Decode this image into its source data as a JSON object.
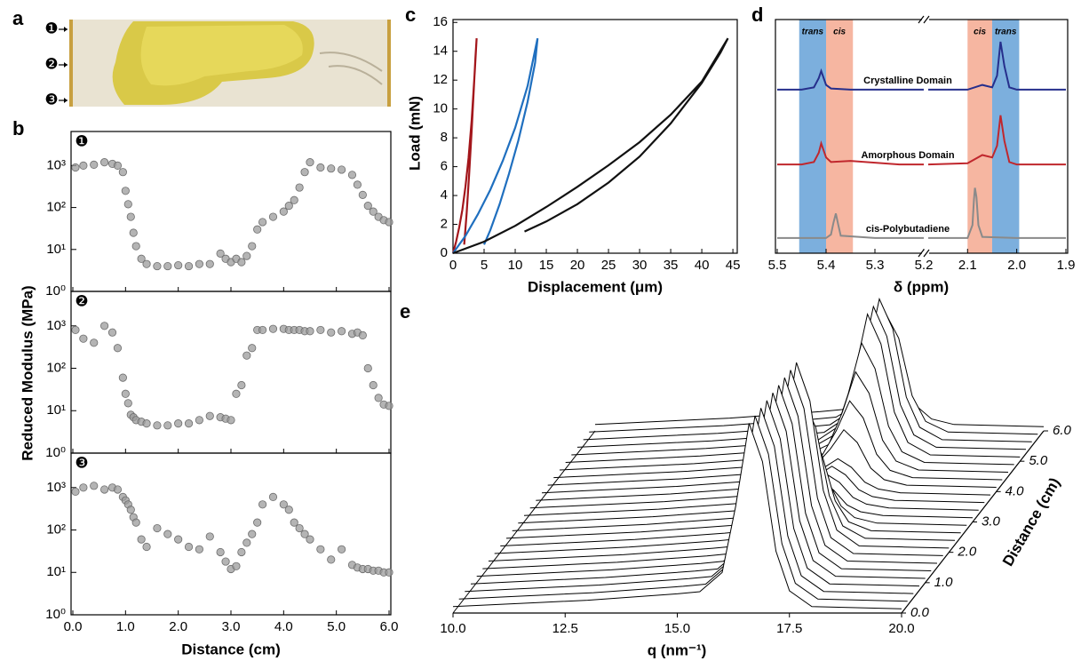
{
  "chart_data": [
    {
      "panel": "a",
      "type": "image",
      "markers": [
        "❶",
        "❷",
        "❸"
      ]
    },
    {
      "panel": "b",
      "type": "scatter",
      "log_y": true,
      "xlabel": "Distance (cm)",
      "ylabel": "Reduced Modulus (MPa)",
      "xlim": [
        0,
        6
      ],
      "xticks": [
        {
          "value": 0,
          "label": "0.0"
        },
        {
          "value": 1,
          "label": "1.0"
        },
        {
          "value": 2,
          "label": "2.0"
        },
        {
          "value": 3,
          "label": "3.0"
        },
        {
          "value": 4,
          "label": "4.0"
        },
        {
          "value": 5,
          "label": "5.0"
        },
        {
          "value": 6,
          "label": "6.0"
        }
      ],
      "ylim": [
        1,
        6500
      ],
      "yticks": [
        {
          "value": 1,
          "label": "10⁰"
        },
        {
          "value": 10,
          "label": "10¹"
        },
        {
          "value": 100,
          "label": "10²"
        },
        {
          "value": 1000,
          "label": "10³"
        }
      ],
      "x": [
        0.05,
        0.2,
        0.4,
        0.6,
        0.75,
        0.85,
        0.95,
        1.0,
        1.05,
        1.1,
        1.15,
        1.2,
        1.3,
        1.4,
        1.6,
        1.8,
        2.0,
        2.2,
        2.4,
        2.6,
        2.8,
        2.9,
        3.0,
        3.1,
        3.2,
        3.3,
        3.4,
        3.5,
        3.6,
        3.8,
        4.0,
        4.1,
        4.2,
        4.3,
        4.4,
        4.5,
        4.7,
        4.9,
        5.1,
        5.3,
        5.4,
        5.5,
        5.6,
        5.7,
        5.8,
        5.9,
        6.0
      ],
      "series": [
        {
          "name": "❶",
          "color": "#9b9b9b",
          "values": [
            900,
            1000,
            1050,
            1200,
            1100,
            1000,
            700,
            250,
            120,
            60,
            25,
            12,
            6,
            4.5,
            4,
            4,
            4.2,
            4,
            4.5,
            4.5,
            8,
            6,
            5,
            6,
            5,
            7,
            12,
            30,
            45,
            60,
            80,
            110,
            150,
            300,
            700,
            1200,
            900,
            850,
            800,
            600,
            350,
            200,
            110,
            80,
            60,
            50,
            45
          ]
        },
        {
          "name": "❷",
          "color": "#9b9b9b",
          "values": [
            800,
            500,
            400,
            1000,
            700,
            300,
            60,
            25,
            15,
            8,
            7,
            6,
            5.5,
            5,
            4.5,
            4.5,
            5,
            5,
            6,
            7.5,
            7,
            6.5,
            6,
            25,
            40,
            200,
            300,
            800,
            800,
            850,
            850,
            800,
            800,
            800,
            750,
            750,
            800,
            700,
            750,
            650,
            700,
            600,
            100,
            40,
            20,
            14,
            13
          ]
        },
        {
          "name": "❸",
          "color": "#9b9b9b",
          "values": [
            800,
            1000,
            1100,
            900,
            1000,
            900,
            600,
            500,
            400,
            300,
            200,
            150,
            60,
            40,
            110,
            80,
            60,
            40,
            35,
            70,
            30,
            18,
            12,
            14,
            30,
            50,
            80,
            150,
            400,
            600,
            400,
            300,
            150,
            110,
            80,
            60,
            35,
            20,
            35,
            15,
            13,
            12,
            12,
            11,
            11,
            10,
            10
          ]
        }
      ]
    },
    {
      "panel": "c",
      "type": "line",
      "xlabel": "Displacement (μm)",
      "ylabel": "Load (mN)",
      "xlim": [
        0,
        45.7
      ],
      "xticks": [
        0,
        5,
        10,
        15,
        20,
        25,
        30,
        35,
        40,
        45
      ],
      "ylim": [
        0,
        16.2
      ],
      "yticks": [
        0,
        2,
        4,
        6,
        8,
        10,
        12,
        14,
        16
      ],
      "series": [
        {
          "color": "#a3161b",
          "x": [
            0,
            0.5,
            1.0,
            1.5,
            2.0,
            2.5,
            3.0,
            3.5,
            3.8,
            3.6,
            3.3,
            3.0,
            2.6,
            2.2,
            1.8
          ],
          "values": [
            0,
            0.8,
            1.8,
            3.0,
            4.6,
            6.6,
            9.2,
            12.6,
            14.9,
            13.5,
            11,
            8.5,
            5.5,
            2.8,
            0.6
          ]
        },
        {
          "color": "#1f6fbf",
          "x": [
            0,
            2,
            4,
            6,
            8,
            10,
            12,
            13.6,
            13.2,
            12,
            10.5,
            9,
            7.5,
            6,
            5
          ],
          "values": [
            0,
            1.2,
            2.7,
            4.4,
            6.4,
            8.7,
            11.6,
            14.9,
            13.2,
            10.5,
            7.8,
            5.5,
            3.4,
            1.6,
            0.6
          ]
        },
        {
          "color": "#111111",
          "x": [
            0,
            5,
            10,
            15,
            20,
            25,
            30,
            35,
            40,
            44.2,
            43,
            40,
            35,
            30,
            25,
            20,
            15,
            11.5
          ],
          "values": [
            0,
            0.8,
            1.9,
            3.2,
            4.6,
            6.1,
            7.7,
            9.6,
            11.9,
            14.9,
            13.9,
            11.8,
            9.0,
            6.7,
            4.9,
            3.4,
            2.2,
            1.5
          ]
        }
      ]
    },
    {
      "panel": "d",
      "type": "spectrum",
      "xlabel": "δ (ppm)",
      "ylim": [
        0,
        10
      ],
      "segments": [
        {
          "xlim": [
            5.5,
            5.2
          ],
          "xticks": [
            5.5,
            5.4,
            5.3,
            5.2
          ]
        },
        {
          "xlim": [
            2.18,
            1.9
          ],
          "xticks": [
            2.1,
            {
              "value": 2,
              "label": "2.0"
            },
            1.9
          ]
        }
      ],
      "bands": [
        {
          "from": 5.455,
          "to": 5.4,
          "label": "trans",
          "color": "#5b9bd5"
        },
        {
          "from": 5.4,
          "to": 5.345,
          "label": "cis",
          "color": "#f4a48a"
        },
        {
          "from": 2.1,
          "to": 2.05,
          "label": "cis",
          "color": "#f4a48a"
        },
        {
          "from": 2.05,
          "to": 1.995,
          "label": "trans",
          "color": "#5b9bd5"
        }
      ],
      "series": [
        {
          "name": "Crystalline Domain",
          "color": "#262f8c",
          "x": [
            5.5,
            5.45,
            5.425,
            5.415,
            5.41,
            5.4,
            5.39,
            5.35,
            5.25,
            5.2,
            null,
            2.18,
            2.1,
            2.07,
            2.05,
            2.04,
            2.033,
            2.025,
            2.015,
            2.0,
            1.95,
            1.9
          ],
          "values": [
            7.0,
            7.0,
            7.1,
            7.5,
            7.8,
            7.2,
            7.05,
            7.0,
            7.0,
            7.0,
            null,
            7.0,
            7.0,
            7.2,
            7.1,
            7.6,
            9.05,
            8.0,
            7.1,
            7.0,
            7.0,
            7.0
          ]
        },
        {
          "name": "Amorphous Domain",
          "color": "#c0272d",
          "x": [
            5.5,
            5.45,
            5.425,
            5.415,
            5.41,
            5.4,
            5.39,
            5.35,
            5.25,
            5.2,
            null,
            2.18,
            2.1,
            2.07,
            2.05,
            2.04,
            2.033,
            2.025,
            2.015,
            2.0,
            1.95,
            1.9
          ],
          "values": [
            3.8,
            3.8,
            3.9,
            4.3,
            4.7,
            4.1,
            3.9,
            3.95,
            3.8,
            3.8,
            null,
            3.8,
            3.85,
            4.2,
            4.1,
            4.6,
            5.9,
            4.8,
            3.9,
            3.8,
            3.8,
            3.8
          ]
        },
        {
          "name": "cis-Polybutadiene",
          "color": "#8a8a8a",
          "x": [
            5.5,
            5.4,
            5.39,
            5.385,
            5.38,
            5.375,
            5.37,
            5.3,
            5.2,
            null,
            2.18,
            2.1,
            2.09,
            2.087,
            2.085,
            2.082,
            2.078,
            2.07,
            2.0,
            1.9
          ],
          "values": [
            0.65,
            0.65,
            0.8,
            1.3,
            1.7,
            1.2,
            0.75,
            0.65,
            0.65,
            null,
            0.65,
            0.65,
            1.2,
            2.3,
            2.8,
            2.4,
            1.2,
            0.7,
            0.65,
            0.65
          ]
        }
      ]
    },
    {
      "panel": "e",
      "type": "waterfall",
      "xlabel": "q (nm⁻¹)",
      "ylabel": "Distance (cm)",
      "xlim": [
        10,
        20
      ],
      "xticks": [
        {
          "value": 10,
          "label": "10.0"
        },
        12.5,
        {
          "value": 15,
          "label": "15.0"
        },
        17.5,
        {
          "value": 20,
          "label": "20.0"
        }
      ],
      "ylim": [
        0,
        6
      ],
      "yticks": [
        {
          "value": 0,
          "label": "0.0"
        },
        {
          "value": 1,
          "label": "1.0"
        },
        {
          "value": 2,
          "label": "2.0"
        },
        {
          "value": 3,
          "label": "3.0"
        },
        {
          "value": 4,
          "label": "4.0"
        },
        {
          "value": 5,
          "label": "5.0"
        },
        {
          "value": 6,
          "label": "6.0"
        }
      ],
      "q": [
        10,
        11,
        12,
        13,
        14,
        15,
        15.5,
        16,
        16.3,
        16.6,
        16.9,
        17.2,
        17.5,
        18,
        19,
        20
      ],
      "distances": [
        0,
        0.25,
        0.5,
        0.75,
        1,
        1.25,
        1.5,
        1.75,
        2,
        2.25,
        2.5,
        2.75,
        3,
        3.25,
        3.5,
        3.75,
        4,
        4.25,
        4.5,
        4.75,
        5,
        5.25,
        5.5,
        5.75,
        6
      ],
      "intensities": [
        [
          0.3,
          0.4,
          0.5,
          0.6,
          0.75,
          0.9,
          1.0,
          1.9,
          5.0,
          8.9,
          7.1,
          2.9,
          1.04,
          0.3,
          0.25,
          0.2
        ],
        [
          0.3,
          0.4,
          0.5,
          0.6,
          0.75,
          0.9,
          1.0,
          1.9,
          5.0,
          8.9,
          7.1,
          2.9,
          1.04,
          0.3,
          0.25,
          0.2
        ],
        [
          0.3,
          0.4,
          0.5,
          0.6,
          0.75,
          0.9,
          1.0,
          1.9,
          5.0,
          8.9,
          7.1,
          2.9,
          1.04,
          0.3,
          0.25,
          0.2
        ],
        [
          0.3,
          0.4,
          0.5,
          0.6,
          0.75,
          0.9,
          1.0,
          1.9,
          5.0,
          8.9,
          7.1,
          2.9,
          1.04,
          0.3,
          0.25,
          0.2
        ],
        [
          0.3,
          0.4,
          0.5,
          0.6,
          0.75,
          0.9,
          1.0,
          1.9,
          5.0,
          8.9,
          7.1,
          2.9,
          1.04,
          0.3,
          0.25,
          0.2
        ],
        [
          0.3,
          0.4,
          0.5,
          0.6,
          0.75,
          0.9,
          1.0,
          1.9,
          5.0,
          8.9,
          7.1,
          2.9,
          1.04,
          0.3,
          0.25,
          0.2
        ],
        [
          0.3,
          0.4,
          0.5,
          0.6,
          0.75,
          0.9,
          1.0,
          1.9,
          5.0,
          8.9,
          7.1,
          2.9,
          1.04,
          0.3,
          0.25,
          0.2
        ],
        [
          0.3,
          0.4,
          0.5,
          0.6,
          0.75,
          0.9,
          1.0,
          1.9,
          5.0,
          8.9,
          7.1,
          2.9,
          1.04,
          0.3,
          0.25,
          0.2
        ],
        [
          0.3,
          0.4,
          0.5,
          0.6,
          0.75,
          0.9,
          1.0,
          1.9,
          5.0,
          8.9,
          7.1,
          2.9,
          1.04,
          0.3,
          0.25,
          0.2
        ],
        [
          0.3,
          0.4,
          0.5,
          0.6,
          0.75,
          0.9,
          1.0,
          1.7,
          4.0,
          6.9,
          5.5,
          2.3,
          0.88,
          0.3,
          0.25,
          0.2
        ],
        [
          0.3,
          0.4,
          0.5,
          0.6,
          0.75,
          0.9,
          1.0,
          1.5,
          3.0,
          4.9,
          3.9,
          1.7,
          0.72,
          0.3,
          0.25,
          0.2
        ],
        [
          0.3,
          0.4,
          0.5,
          0.6,
          0.75,
          0.9,
          1.0,
          1.3,
          2.0,
          2.9,
          2.3,
          1.1,
          0.56,
          0.3,
          0.25,
          0.2
        ],
        [
          0.3,
          0.4,
          0.5,
          0.6,
          0.75,
          0.9,
          1.0,
          1.2,
          1.5,
          1.9,
          1.5,
          0.8,
          0.48,
          0.3,
          0.25,
          0.2
        ],
        [
          0.3,
          0.4,
          0.5,
          0.6,
          0.75,
          0.9,
          1.0,
          1.2,
          1.5,
          1.9,
          1.5,
          0.8,
          0.48,
          0.3,
          0.25,
          0.2
        ],
        [
          0.3,
          0.4,
          0.5,
          0.6,
          0.75,
          0.9,
          1.0,
          1.2,
          1.5,
          1.9,
          1.5,
          0.8,
          0.48,
          0.3,
          0.25,
          0.2
        ],
        [
          0.3,
          0.4,
          0.5,
          0.6,
          0.75,
          0.9,
          1.0,
          1.2,
          1.5,
          1.9,
          1.5,
          0.8,
          0.48,
          0.3,
          0.25,
          0.2
        ],
        [
          0.3,
          0.4,
          0.5,
          0.6,
          0.75,
          0.9,
          1.0,
          1.3,
          2.0,
          2.9,
          2.3,
          1.1,
          0.56,
          0.3,
          0.25,
          0.2
        ],
        [
          0.3,
          0.4,
          0.5,
          0.6,
          0.75,
          0.9,
          1.0,
          1.4,
          2.5,
          3.9,
          3.1,
          1.4,
          0.64,
          0.3,
          0.25,
          0.2
        ],
        [
          0.3,
          0.4,
          0.5,
          0.6,
          0.75,
          0.9,
          1.0,
          1.5,
          3.0,
          4.9,
          3.9,
          1.7,
          0.72,
          0.3,
          0.25,
          0.2
        ],
        [
          0.3,
          0.4,
          0.5,
          0.6,
          0.75,
          0.9,
          1.0,
          1.6,
          3.5,
          5.9,
          4.7,
          2.0,
          0.8,
          0.3,
          0.25,
          0.2
        ],
        [
          0.3,
          0.4,
          0.5,
          0.6,
          0.75,
          0.9,
          1.0,
          1.7,
          4.0,
          6.9,
          5.5,
          2.3,
          0.88,
          0.3,
          0.25,
          0.2
        ],
        [
          0.3,
          0.4,
          0.5,
          0.6,
          0.75,
          0.9,
          1.0,
          1.7,
          4.0,
          6.9,
          5.5,
          2.3,
          0.88,
          0.3,
          0.25,
          0.2
        ],
        [
          0.3,
          0.4,
          0.5,
          0.6,
          0.75,
          0.9,
          1.0,
          1.7,
          4.0,
          6.9,
          5.5,
          2.3,
          0.88,
          0.3,
          0.25,
          0.2
        ],
        [
          0.3,
          0.4,
          0.5,
          0.6,
          0.75,
          0.9,
          1.0,
          1.6,
          3.5,
          5.9,
          4.7,
          2.0,
          0.8,
          0.3,
          0.25,
          0.2
        ],
        [
          0.3,
          0.4,
          0.5,
          0.6,
          0.75,
          0.9,
          1.0,
          1.3,
          2.0,
          2.9,
          2.3,
          1.1,
          0.56,
          0.3,
          0.25,
          0.2
        ]
      ]
    }
  ]
}
